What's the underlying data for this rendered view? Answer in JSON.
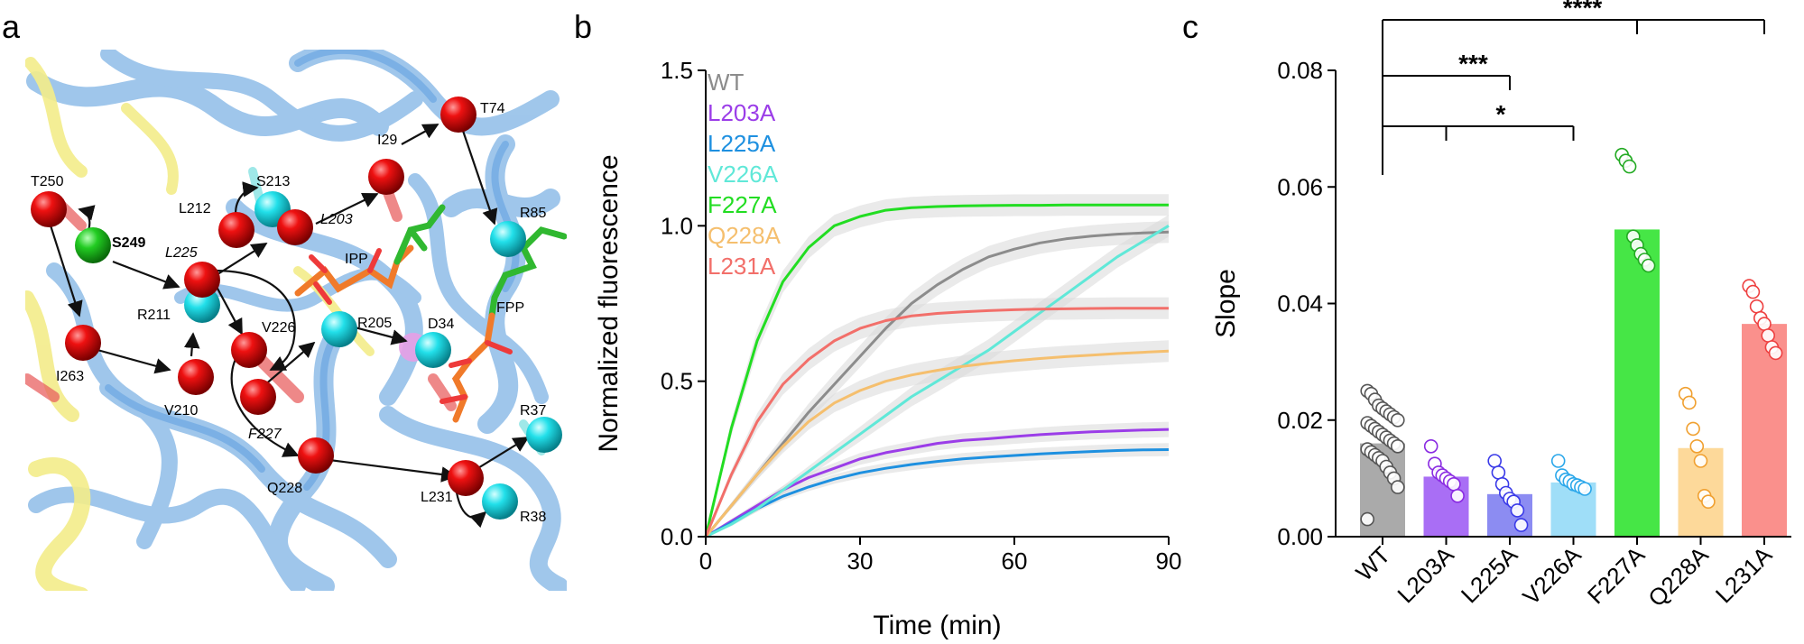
{
  "figure": {
    "panels": [
      {
        "letter": "a"
      },
      {
        "letter": "b"
      },
      {
        "letter": "c"
      }
    ],
    "panel_a": {
      "residues": [
        {
          "label": "T250",
          "type": "red"
        },
        {
          "label": "S249",
          "type": "green",
          "bold": true
        },
        {
          "label": "I263",
          "type": "red"
        },
        {
          "label": "V210",
          "type": "red"
        },
        {
          "label": "R211",
          "type": "cyan"
        },
        {
          "label": "L225",
          "type": "red",
          "italic": true
        },
        {
          "label": "L212",
          "type": "red"
        },
        {
          "label": "S213",
          "type": "cyan"
        },
        {
          "label": "L203",
          "type": "red",
          "italic": true
        },
        {
          "label": "I29",
          "type": "red"
        },
        {
          "label": "T74",
          "type": "red"
        },
        {
          "label": "R85",
          "type": "cyan"
        },
        {
          "label": "V226",
          "type": "red"
        },
        {
          "label": "F227",
          "type": "red",
          "italic": true
        },
        {
          "label": "R205",
          "type": "cyan"
        },
        {
          "label": "D34",
          "type": "cyan"
        },
        {
          "label": "Q228",
          "type": "red"
        },
        {
          "label": "L231",
          "type": "red"
        },
        {
          "label": "R37",
          "type": "cyan"
        },
        {
          "label": "R38",
          "type": "cyan"
        }
      ],
      "ligands": [
        {
          "label": "IPP"
        },
        {
          "label": "FPP"
        }
      ]
    }
  },
  "chart_data": [
    {
      "type": "line",
      "panel": "b",
      "title": "",
      "xlabel": "Time (min)",
      "ylabel": "Normalized fluorescence",
      "xlim": [
        0,
        90
      ],
      "ylim": [
        0,
        1.5
      ],
      "xticks": [
        "0",
        "30",
        "60",
        "90"
      ],
      "yticks": [
        "0.0",
        "0.5",
        "1.0",
        "1.5"
      ],
      "legend_position": "top-left",
      "series": [
        {
          "name": "WT",
          "color": "#8c8c8c",
          "x": [
            0,
            5,
            10,
            15,
            20,
            25,
            30,
            35,
            40,
            45,
            50,
            55,
            60,
            65,
            70,
            75,
            80,
            85,
            90
          ],
          "values": [
            0,
            0.1,
            0.2,
            0.3,
            0.4,
            0.49,
            0.58,
            0.67,
            0.75,
            0.81,
            0.86,
            0.9,
            0.925,
            0.945,
            0.958,
            0.967,
            0.973,
            0.977,
            0.98
          ]
        },
        {
          "name": "L203A",
          "color": "#9b3de8",
          "x": [
            0,
            5,
            10,
            15,
            20,
            25,
            30,
            35,
            40,
            45,
            50,
            55,
            60,
            65,
            70,
            75,
            80,
            85,
            90
          ],
          "values": [
            0,
            0.05,
            0.1,
            0.15,
            0.19,
            0.22,
            0.25,
            0.27,
            0.285,
            0.3,
            0.31,
            0.315,
            0.322,
            0.328,
            0.333,
            0.337,
            0.34,
            0.343,
            0.345
          ]
        },
        {
          "name": "L225A",
          "color": "#1e90e0",
          "x": [
            0,
            5,
            10,
            15,
            20,
            25,
            30,
            35,
            40,
            45,
            50,
            55,
            60,
            65,
            70,
            75,
            80,
            85,
            90
          ],
          "values": [
            0,
            0.045,
            0.09,
            0.13,
            0.16,
            0.185,
            0.205,
            0.22,
            0.232,
            0.242,
            0.25,
            0.256,
            0.261,
            0.266,
            0.27,
            0.274,
            0.277,
            0.279,
            0.28
          ]
        },
        {
          "name": "V226A",
          "color": "#60e8d8",
          "x": [
            0,
            5,
            10,
            15,
            20,
            25,
            30,
            35,
            40,
            45,
            50,
            55,
            60,
            65,
            70,
            75,
            80,
            85,
            90
          ],
          "values": [
            0,
            0.04,
            0.09,
            0.15,
            0.21,
            0.27,
            0.33,
            0.39,
            0.45,
            0.5,
            0.55,
            0.6,
            0.66,
            0.72,
            0.78,
            0.84,
            0.9,
            0.95,
            1.0
          ]
        },
        {
          "name": "F227A",
          "color": "#22dd22",
          "x": [
            0,
            5,
            10,
            15,
            20,
            25,
            30,
            35,
            40,
            45,
            50,
            55,
            60,
            65,
            70,
            75,
            80,
            85,
            90
          ],
          "values": [
            0,
            0.35,
            0.63,
            0.82,
            0.93,
            1.0,
            1.03,
            1.05,
            1.058,
            1.062,
            1.064,
            1.065,
            1.066,
            1.066,
            1.067,
            1.067,
            1.067,
            1.067,
            1.067
          ]
        },
        {
          "name": "Q228A",
          "color": "#f5bf6e",
          "x": [
            0,
            5,
            10,
            15,
            20,
            25,
            30,
            35,
            40,
            45,
            50,
            55,
            60,
            65,
            70,
            75,
            80,
            85,
            90
          ],
          "values": [
            0,
            0.1,
            0.2,
            0.29,
            0.37,
            0.43,
            0.47,
            0.5,
            0.52,
            0.535,
            0.548,
            0.558,
            0.566,
            0.573,
            0.579,
            0.584,
            0.589,
            0.593,
            0.597
          ]
        },
        {
          "name": "L231A",
          "color": "#f26f6a",
          "x": [
            0,
            5,
            10,
            15,
            20,
            25,
            30,
            35,
            40,
            45,
            50,
            55,
            60,
            65,
            70,
            75,
            80,
            85,
            90
          ],
          "values": [
            0,
            0.2,
            0.37,
            0.49,
            0.57,
            0.63,
            0.67,
            0.695,
            0.71,
            0.718,
            0.723,
            0.727,
            0.73,
            0.732,
            0.733,
            0.734,
            0.735,
            0.735,
            0.735
          ]
        }
      ]
    },
    {
      "type": "bar",
      "panel": "c",
      "title": "",
      "xlabel": "",
      "ylabel": "Slope",
      "ylim": [
        0,
        0.08
      ],
      "yticks": [
        "0.00",
        "0.02",
        "0.04",
        "0.06",
        "0.08"
      ],
      "categories": [
        "WT",
        "L203A",
        "L225A",
        "V226A",
        "F227A",
        "Q228A",
        "L231A"
      ],
      "values": [
        0.016,
        0.0103,
        0.0073,
        0.0093,
        0.0527,
        0.0152,
        0.0365
      ],
      "bar_colors": [
        "#aaaaaa",
        "#a96ef5",
        "#8c8cf2",
        "#9fdef8",
        "#46e646",
        "#fdd99a",
        "#fa908c"
      ],
      "point_colors": [
        "#555555",
        "#8a2be2",
        "#3a3ae8",
        "#2aa7ea",
        "#22aa22",
        "#f0a030",
        "#ee4040"
      ],
      "points": [
        [
          0.025,
          0.0245,
          0.0235,
          0.0225,
          0.022,
          0.0215,
          0.021,
          0.0205,
          0.02,
          0.0195,
          0.019,
          0.0185,
          0.018,
          0.0175,
          0.017,
          0.0165,
          0.016,
          0.0155,
          0.015,
          0.0145,
          0.014,
          0.0135,
          0.013,
          0.012,
          0.011,
          0.01,
          0.0085,
          0.003
        ],
        [
          0.0155,
          0.0125,
          0.011,
          0.0105,
          0.01,
          0.0095,
          0.009,
          0.007
        ],
        [
          0.013,
          0.011,
          0.009,
          0.0075,
          0.0065,
          0.006,
          0.0045,
          0.002
        ],
        [
          0.013,
          0.0105,
          0.0098,
          0.0095,
          0.009,
          0.0088,
          0.0085,
          0.0082
        ],
        [
          0.0655,
          0.0645,
          0.0635,
          0.0515,
          0.05,
          0.0485,
          0.0475,
          0.0465
        ],
        [
          0.0245,
          0.023,
          0.0185,
          0.0155,
          0.013,
          0.007,
          0.006
        ],
        [
          0.043,
          0.042,
          0.0395,
          0.0375,
          0.0365,
          0.0345,
          0.0325,
          0.0315
        ]
      ],
      "significance": [
        {
          "label": "***",
          "from": "WT",
          "to": "L225A"
        },
        {
          "label": "*",
          "from": "WT",
          "to": "V226A",
          "via": "L203A"
        },
        {
          "label": "****",
          "from": "WT",
          "to": "L231A",
          "via": "F227A"
        }
      ]
    }
  ]
}
